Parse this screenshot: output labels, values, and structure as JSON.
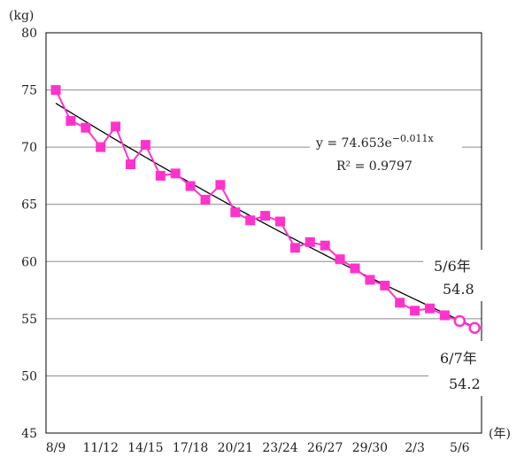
{
  "chart_data": {
    "type": "line",
    "ylabel": "(kg)",
    "xlabel": "(年)",
    "ylim": [
      45,
      80
    ],
    "yticks": [
      45,
      50,
      55,
      60,
      65,
      70,
      75,
      80
    ],
    "grid": "horizontal",
    "x_tick_labels": [
      "8/9",
      "11/12",
      "14/15",
      "17/18",
      "20/21",
      "23/24",
      "26/27",
      "29/30",
      "2/3",
      "5/6"
    ],
    "x_tick_positions": [
      1,
      4,
      7,
      10,
      13,
      16,
      19,
      22,
      25,
      28
    ],
    "series": [
      {
        "style": "filled-square",
        "color": "#ff33cc",
        "x": [
          1,
          2,
          3,
          4,
          5,
          6,
          7,
          8,
          9,
          10,
          11,
          12,
          13,
          14,
          15,
          16,
          17,
          18,
          19,
          20,
          21,
          22,
          23,
          24,
          25,
          26,
          27
        ],
        "values": [
          75.0,
          72.3,
          71.7,
          70.0,
          71.8,
          68.5,
          70.2,
          67.5,
          67.7,
          66.6,
          65.4,
          66.7,
          64.3,
          63.6,
          64.0,
          63.5,
          61.2,
          61.7,
          61.4,
          60.2,
          59.4,
          58.4,
          57.9,
          56.4,
          55.7,
          55.9,
          55.3
        ]
      },
      {
        "style": "open-circle",
        "color": "#ff33cc",
        "x": [
          27,
          28,
          29
        ],
        "values": [
          55.3,
          54.8,
          54.2
        ]
      }
    ],
    "trendline": {
      "type": "exponential",
      "a": 74.653,
      "b": -0.011,
      "x_range": [
        1,
        29
      ],
      "color": "#000000",
      "equation": "y = 74.653e",
      "exponent": "−0.011x",
      "r2": "R² = 0.9797"
    },
    "annotations": [
      {
        "label": "5/6年",
        "value": "54.8"
      },
      {
        "label": "6/7年",
        "value": "54.2"
      }
    ]
  }
}
